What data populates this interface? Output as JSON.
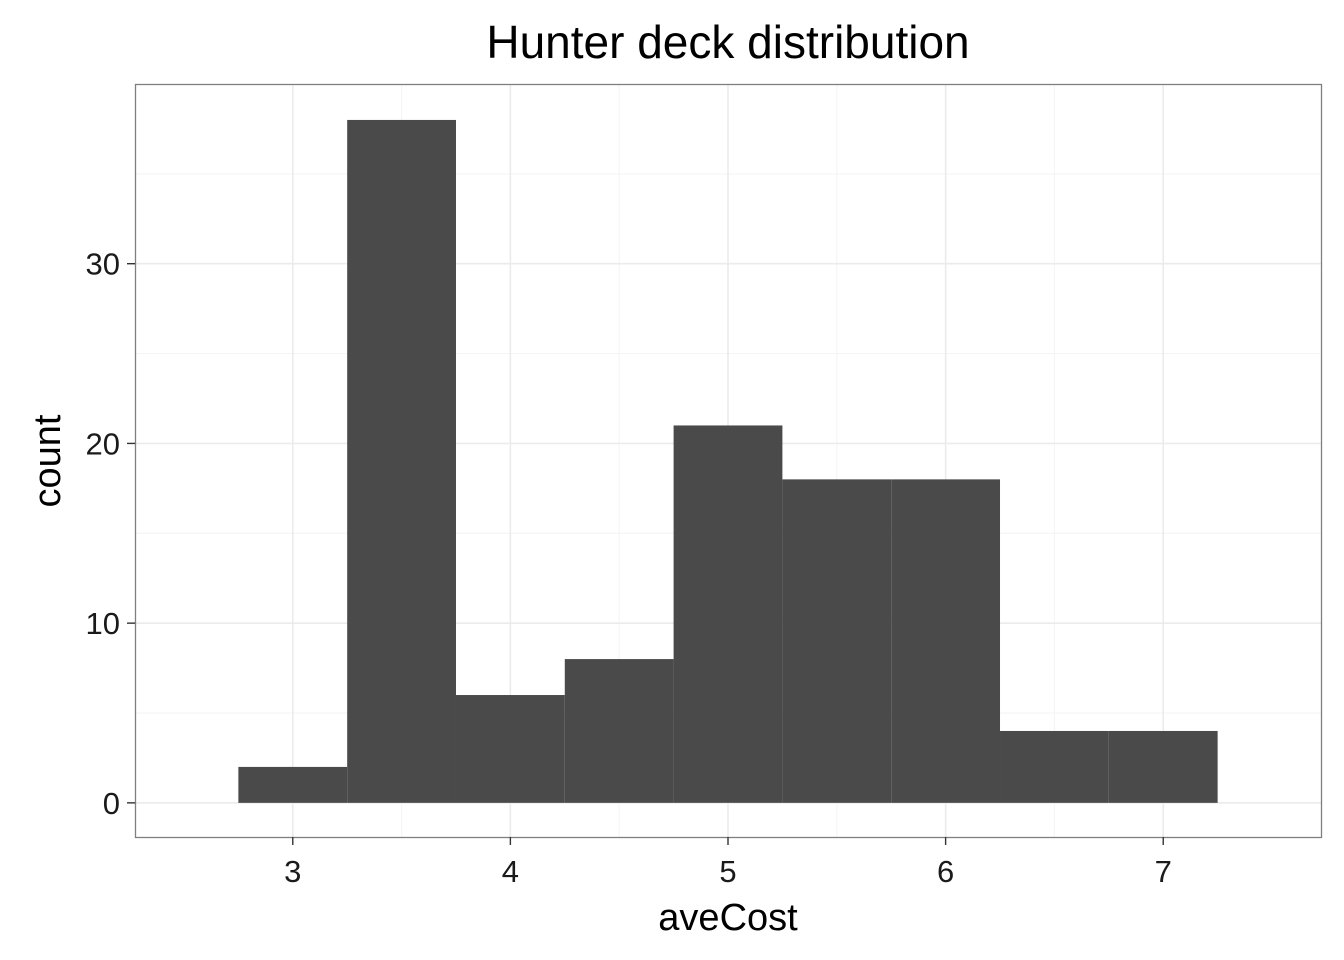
{
  "chart_data": {
    "type": "bar",
    "subtype": "histogram",
    "title": "Hunter deck distribution",
    "xlabel": "aveCost",
    "ylabel": "count",
    "bins": [
      {
        "start": 2.75,
        "end": 3.25,
        "count": 2
      },
      {
        "start": 3.25,
        "end": 3.75,
        "count": 38
      },
      {
        "start": 3.75,
        "end": 4.25,
        "count": 6
      },
      {
        "start": 4.25,
        "end": 4.75,
        "count": 8
      },
      {
        "start": 4.75,
        "end": 5.25,
        "count": 21
      },
      {
        "start": 5.25,
        "end": 5.75,
        "count": 18
      },
      {
        "start": 5.75,
        "end": 6.25,
        "count": 18
      },
      {
        "start": 6.25,
        "end": 6.75,
        "count": 4
      },
      {
        "start": 6.75,
        "end": 7.25,
        "count": 4
      }
    ],
    "xlim": [
      2.275,
      7.725
    ],
    "ylim": [
      -1.9,
      40.0
    ],
    "xticks": [
      3,
      4,
      5,
      6,
      7
    ],
    "yticks": [
      0,
      10,
      20,
      30
    ],
    "grid": true,
    "bar_color": "#4a4a4a",
    "panel_border_color": "#7f7f7f",
    "grid_major_color": "#ebebeb",
    "grid_minor_color": "#f5f5f5"
  }
}
